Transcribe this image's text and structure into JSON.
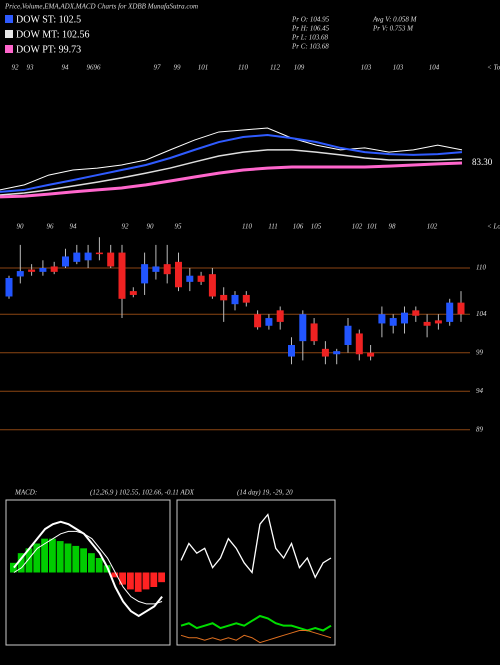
{
  "header": {
    "title": "Price,Volume,EMA,ADX,MACD Charts for XDBB MunafaSutra.com"
  },
  "legend": [
    {
      "label": "DOW ST: 102.5",
      "color": "#2f5bff"
    },
    {
      "label": "DOW MT: 102.56",
      "color": "#e8e8e8"
    },
    {
      "label": "DOW PT: 99.73",
      "color": "#ff66cc"
    }
  ],
  "stats": [
    [
      "Pr  O: 104.95",
      "Avg V: 0.058 M"
    ],
    [
      "Pr  H: 106.45",
      "Pr  V: 0.753 M"
    ],
    [
      "Pr  L: 103.68"
    ],
    [
      "Pr  C: 103.68"
    ]
  ],
  "top_labels": [
    "92",
    "93",
    "94",
    "96",
    "96",
    "97",
    "99",
    "101",
    "110",
    "112",
    "109",
    "103",
    "103",
    "104"
  ],
  "top_marker": "< Tops",
  "low_labels": [
    "90",
    "96",
    "94",
    "92",
    "90",
    "95",
    "110",
    "111",
    "106",
    "105",
    "102",
    "101",
    "98",
    "102"
  ],
  "low_marker": "< Lows",
  "macd_header": {
    "name": "MACD:",
    "text": "(12,26,9 ) 102.55, 102.66, -0.11 ADX",
    "adx": "(14 day) 19, -29, 20"
  },
  "chart_data": [
    {
      "type": "line",
      "ylim": [
        70,
        120
      ],
      "annotation": "83.30",
      "series": [
        {
          "color": "#ffffff",
          "values": [
            73.6,
            75.4,
            78.9,
            80.7,
            81.4,
            82.5,
            84.3,
            87.9,
            91.4,
            94.3,
            95,
            95.7,
            92.1,
            89.6,
            87.9,
            88.6,
            87.1,
            87.9,
            89.6,
            87.9
          ]
        },
        {
          "color": "#2f5bff",
          "values": [
            72.9,
            73.6,
            75.4,
            77.1,
            78.9,
            80.7,
            82.5,
            85,
            87.9,
            90.7,
            92.5,
            93.2,
            92.1,
            90.7,
            88.6,
            87.1,
            86.4,
            86.1,
            86.4,
            87.1
          ]
        },
        {
          "color": "#dddddd",
          "values": [
            71.8,
            72.5,
            73.6,
            75,
            76.4,
            77.9,
            79.6,
            81.4,
            83.6,
            85.7,
            87.1,
            87.9,
            87.9,
            87.1,
            86.1,
            85,
            84.3,
            84.3,
            84.3,
            84.6
          ]
        },
        {
          "color": "#ff66cc",
          "values": [
            71.1,
            71.4,
            72.1,
            72.9,
            73.6,
            74.3,
            75.4,
            76.8,
            78.2,
            79.6,
            80.7,
            81.4,
            81.8,
            81.8,
            81.8,
            81.8,
            82.1,
            82.5,
            82.9,
            83.2
          ]
        }
      ]
    },
    {
      "type": "candlestick",
      "ylim": [
        85,
        115
      ],
      "yticks": [
        110,
        104,
        99,
        94,
        89
      ],
      "grid": true,
      "up_color": "#2255ff",
      "down_color": "#ee2222",
      "grid_color": "#8b4513",
      "open": [
        106.3,
        108.9,
        109.8,
        109.5,
        110.2,
        110.2,
        110.8,
        111,
        112,
        112,
        112,
        107,
        108,
        109.5,
        110.5,
        110.8,
        108.2,
        109,
        109.2,
        106.5,
        105.3,
        106.5,
        104,
        102.5,
        104.5,
        98.5,
        100.5,
        102.8,
        99.5,
        98.8,
        100,
        101.5,
        99,
        102.8,
        102.5,
        102.8,
        104.5,
        103,
        103.2,
        103,
        105.5
      ],
      "high": [
        109,
        113,
        110.5,
        111,
        110.8,
        112.5,
        113,
        113,
        114,
        113,
        113,
        107.5,
        112,
        113,
        113,
        112,
        110,
        109.5,
        110,
        107.5,
        107,
        107,
        104.5,
        104,
        105,
        101,
        104.5,
        103.5,
        100.5,
        99.5,
        103.5,
        102,
        100,
        105,
        104,
        105,
        105,
        104,
        104,
        106,
        107
      ],
      "low": [
        106,
        108,
        109,
        109,
        109.2,
        110,
        110.5,
        110,
        111,
        110,
        103.5,
        106.2,
        106.5,
        108.5,
        108,
        107,
        107,
        107.8,
        106,
        103,
        104.5,
        105,
        102,
        102,
        102,
        97.5,
        98,
        100,
        97.5,
        97.5,
        99,
        98,
        98,
        101,
        101.5,
        101.5,
        103,
        101,
        102,
        102.5,
        103
      ],
      "close": [
        108.7,
        109.6,
        109.5,
        110,
        109.5,
        111.5,
        112,
        112,
        111.8,
        110.2,
        106,
        106.5,
        110.5,
        110.2,
        109.2,
        107.5,
        109,
        108.2,
        106.3,
        105.8,
        106.5,
        105.5,
        102.3,
        103.5,
        103,
        100,
        104,
        100.5,
        98.5,
        99.2,
        102.5,
        98.8,
        98.5,
        104,
        103.5,
        104.2,
        103.8,
        102.5,
        102.8,
        105.5,
        104
      ]
    },
    {
      "type": "macd",
      "ylim": [
        -1.5,
        1.5
      ],
      "pos_color": "#00cc00",
      "neg_color": "#ff2222",
      "line_color": "#ffffff",
      "histogram": [
        0.2,
        0.4,
        0.5,
        0.6,
        0.7,
        0.7,
        0.65,
        0.6,
        0.55,
        0.5,
        0.4,
        0.3,
        0.15,
        -0.1,
        -0.25,
        -0.35,
        -0.4,
        -0.35,
        -0.3,
        -0.2
      ],
      "macd": [
        0.1,
        0.3,
        0.5,
        0.7,
        0.9,
        1.0,
        1.05,
        1.0,
        0.9,
        0.8,
        0.6,
        0.4,
        0.1,
        -0.3,
        -0.6,
        -0.8,
        -0.9,
        -0.8,
        -0.7,
        -0.5
      ],
      "signal": [
        0,
        0.1,
        0.3,
        0.5,
        0.6,
        0.7,
        0.8,
        0.85,
        0.85,
        0.8,
        0.7,
        0.5,
        0.3,
        0,
        -0.3,
        -0.5,
        -0.6,
        -0.65,
        -0.65,
        -0.6
      ]
    },
    {
      "type": "line",
      "ylim": [
        0,
        60
      ],
      "series": [
        {
          "color": "#ffffff",
          "values": [
            35,
            42,
            38,
            40,
            32,
            36,
            44,
            40,
            34,
            30,
            50,
            54,
            40,
            36,
            42,
            32,
            36,
            28,
            34,
            36
          ]
        },
        {
          "color": "#00dd00",
          "values": [
            8,
            9,
            7,
            8,
            9,
            7,
            8,
            9,
            8,
            10,
            12,
            11,
            9,
            8,
            8,
            7,
            6,
            7,
            6,
            8
          ]
        },
        {
          "color": "#e07020",
          "values": [
            4,
            3,
            3,
            2,
            3,
            2,
            3,
            2,
            4,
            3,
            1,
            2,
            3,
            4,
            5,
            6,
            6,
            5,
            4,
            3
          ]
        }
      ]
    }
  ]
}
